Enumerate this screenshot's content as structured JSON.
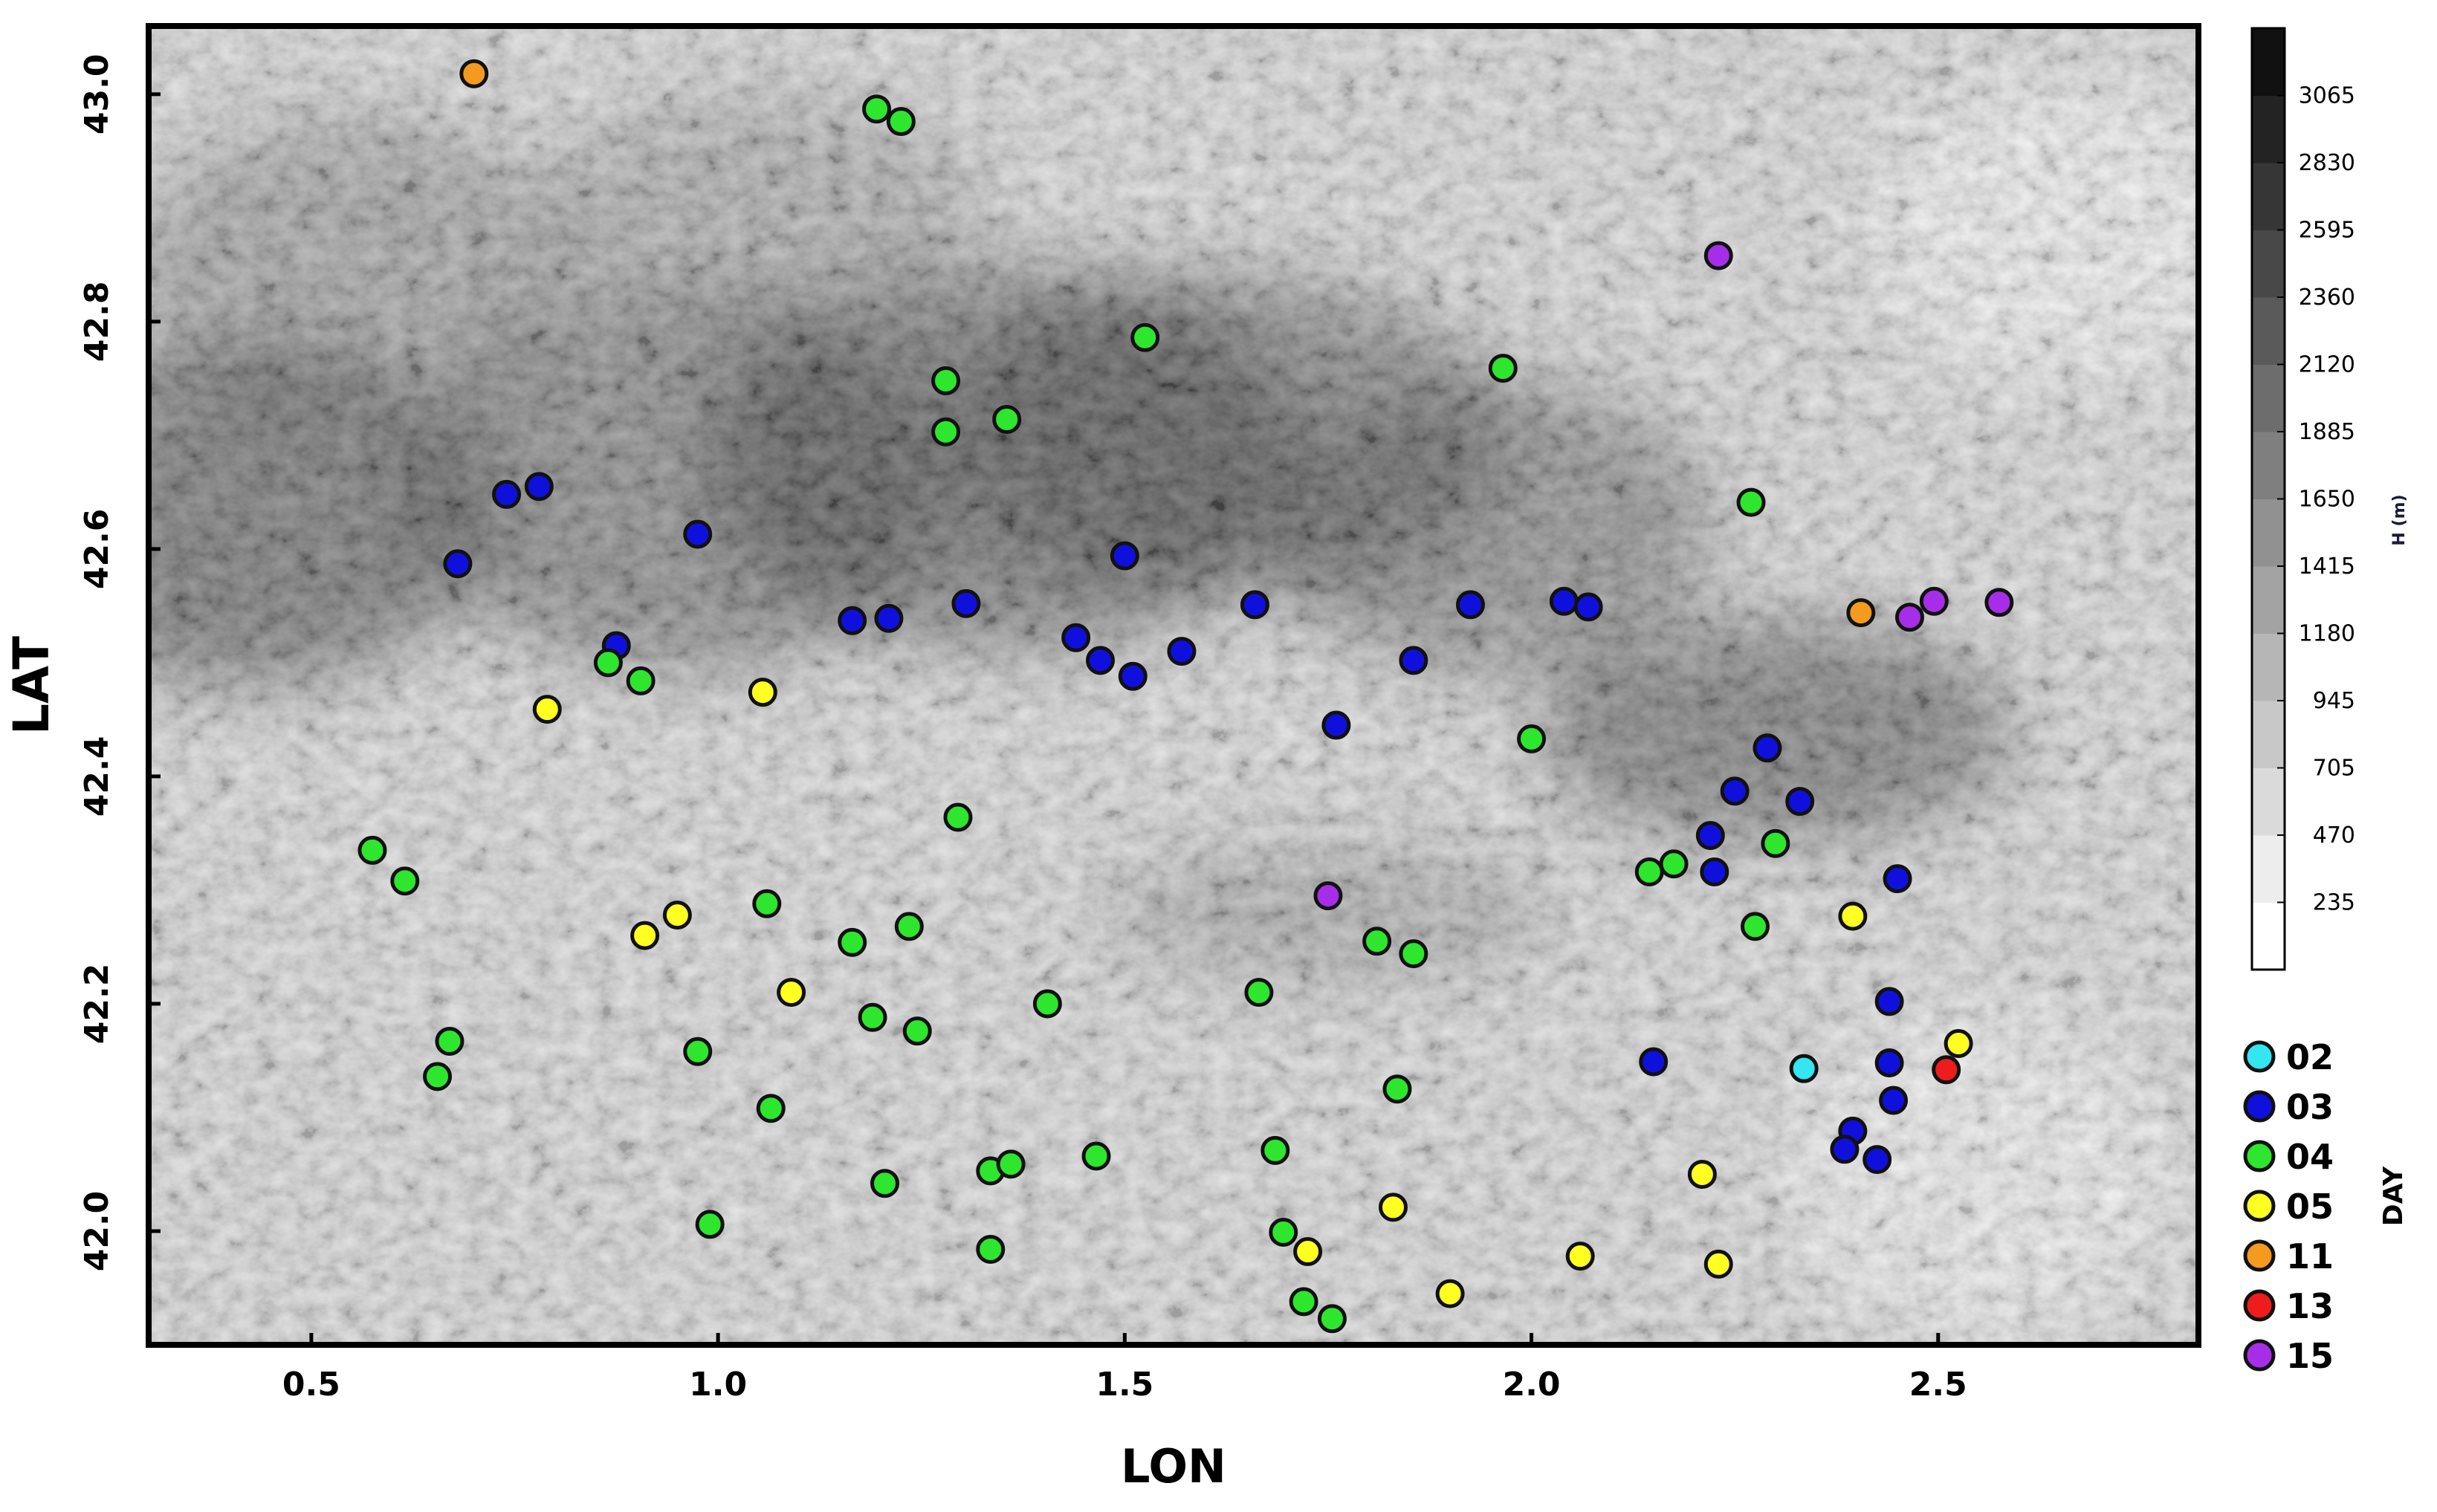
{
  "chart_data": {
    "type": "scatter",
    "xlabel": "LON",
    "ylabel": "LAT",
    "xlim": [
      0.3,
      2.82
    ],
    "ylim": [
      41.9,
      43.06
    ],
    "x_ticks": [
      0.5,
      1.0,
      1.5,
      2.0,
      2.5
    ],
    "x_tick_labels": [
      "0.5",
      "1.0",
      "1.5",
      "2.0",
      "2.5"
    ],
    "y_ticks": [
      42.0,
      42.2,
      42.4,
      42.6,
      42.8,
      43.0
    ],
    "y_tick_labels": [
      "42.0",
      "42.2",
      "42.4",
      "42.6",
      "42.8",
      "43.0"
    ],
    "grid": false,
    "background": "grayscale shaded-relief elevation map",
    "colorbar": {
      "label": "H (m)",
      "tick_labels": [
        "235",
        "470",
        "705",
        "945",
        "1180",
        "1415",
        "1650",
        "1885",
        "2120",
        "2360",
        "2595",
        "2830",
        "3065"
      ],
      "color_low": "#ffffff",
      "color_high": "#111111"
    },
    "legend": {
      "title": "DAY",
      "placement": "right-bottom"
    },
    "series": [
      {
        "name": "02",
        "color": "#33e6f0",
        "points": [
          [
            2.335,
            42.143
          ]
        ]
      },
      {
        "name": "03",
        "color": "#1010dd",
        "points": [
          [
            0.68,
            42.587
          ],
          [
            0.74,
            42.648
          ],
          [
            0.78,
            42.655
          ],
          [
            0.875,
            42.515
          ],
          [
            0.975,
            42.613
          ],
          [
            1.165,
            42.537
          ],
          [
            1.21,
            42.539
          ],
          [
            1.305,
            42.552
          ],
          [
            1.44,
            42.522
          ],
          [
            1.47,
            42.502
          ],
          [
            1.5,
            42.594
          ],
          [
            1.51,
            42.488
          ],
          [
            1.57,
            42.51
          ],
          [
            1.66,
            42.551
          ],
          [
            1.76,
            42.445
          ],
          [
            1.855,
            42.502
          ],
          [
            1.925,
            42.551
          ],
          [
            2.04,
            42.554
          ],
          [
            2.07,
            42.549
          ],
          [
            2.15,
            42.149
          ],
          [
            2.22,
            42.348
          ],
          [
            2.225,
            42.316
          ],
          [
            2.25,
            42.387
          ],
          [
            2.29,
            42.425
          ],
          [
            2.33,
            42.378
          ],
          [
            2.44,
            42.202
          ],
          [
            2.45,
            42.31
          ],
          [
            2.44,
            42.148
          ],
          [
            2.445,
            42.115
          ],
          [
            2.395,
            42.088
          ],
          [
            2.385,
            42.072
          ],
          [
            2.425,
            42.063
          ]
        ]
      },
      {
        "name": "04",
        "color": "#2ee62e",
        "points": [
          [
            0.575,
            42.335
          ],
          [
            0.615,
            42.308
          ],
          [
            0.67,
            42.167
          ],
          [
            0.655,
            42.136
          ],
          [
            0.865,
            42.5
          ],
          [
            0.905,
            42.484
          ],
          [
            0.975,
            42.158
          ],
          [
            0.99,
            42.006
          ],
          [
            1.06,
            42.288
          ],
          [
            1.065,
            42.108
          ],
          [
            1.165,
            42.254
          ],
          [
            1.19,
            42.188
          ],
          [
            1.195,
            42.987
          ],
          [
            1.225,
            42.976
          ],
          [
            1.205,
            42.042
          ],
          [
            1.235,
            42.268
          ],
          [
            1.245,
            42.176
          ],
          [
            1.28,
            42.748
          ],
          [
            1.28,
            42.703
          ],
          [
            1.295,
            42.364
          ],
          [
            1.335,
            42.053
          ],
          [
            1.36,
            42.059
          ],
          [
            1.335,
            41.984
          ],
          [
            1.355,
            42.714
          ],
          [
            1.405,
            42.2
          ],
          [
            1.465,
            42.066
          ],
          [
            1.525,
            42.786
          ],
          [
            1.665,
            42.21
          ],
          [
            1.685,
            42.071
          ],
          [
            1.695,
            41.999
          ],
          [
            1.72,
            41.938
          ],
          [
            1.755,
            41.923
          ],
          [
            1.81,
            42.255
          ],
          [
            1.835,
            42.125
          ],
          [
            1.855,
            42.244
          ],
          [
            1.965,
            42.759
          ],
          [
            2.0,
            42.433
          ],
          [
            2.145,
            42.316
          ],
          [
            2.175,
            42.323
          ],
          [
            2.27,
            42.641
          ],
          [
            2.275,
            42.268
          ],
          [
            2.3,
            42.341
          ]
        ]
      },
      {
        "name": "05",
        "color": "#ffff22",
        "points": [
          [
            0.79,
            42.459
          ],
          [
            0.91,
            42.26
          ],
          [
            0.95,
            42.278
          ],
          [
            1.055,
            42.474
          ],
          [
            1.09,
            42.21
          ],
          [
            1.725,
            41.982
          ],
          [
            1.83,
            42.021
          ],
          [
            1.9,
            41.945
          ],
          [
            2.06,
            41.978
          ],
          [
            2.21,
            42.05
          ],
          [
            2.23,
            41.971
          ],
          [
            2.395,
            42.277
          ],
          [
            2.525,
            42.165
          ]
        ]
      },
      {
        "name": "11",
        "color": "#f39a1f",
        "points": [
          [
            0.7,
            43.018
          ],
          [
            2.405,
            42.544
          ]
        ]
      },
      {
        "name": "13",
        "color": "#ee1c1c",
        "points": [
          [
            2.51,
            42.142
          ]
        ]
      },
      {
        "name": "15",
        "color": "#a72ee8",
        "points": [
          [
            2.23,
            42.858
          ],
          [
            1.75,
            42.295
          ],
          [
            2.465,
            42.54
          ],
          [
            2.495,
            42.554
          ],
          [
            2.575,
            42.553
          ]
        ]
      }
    ]
  }
}
